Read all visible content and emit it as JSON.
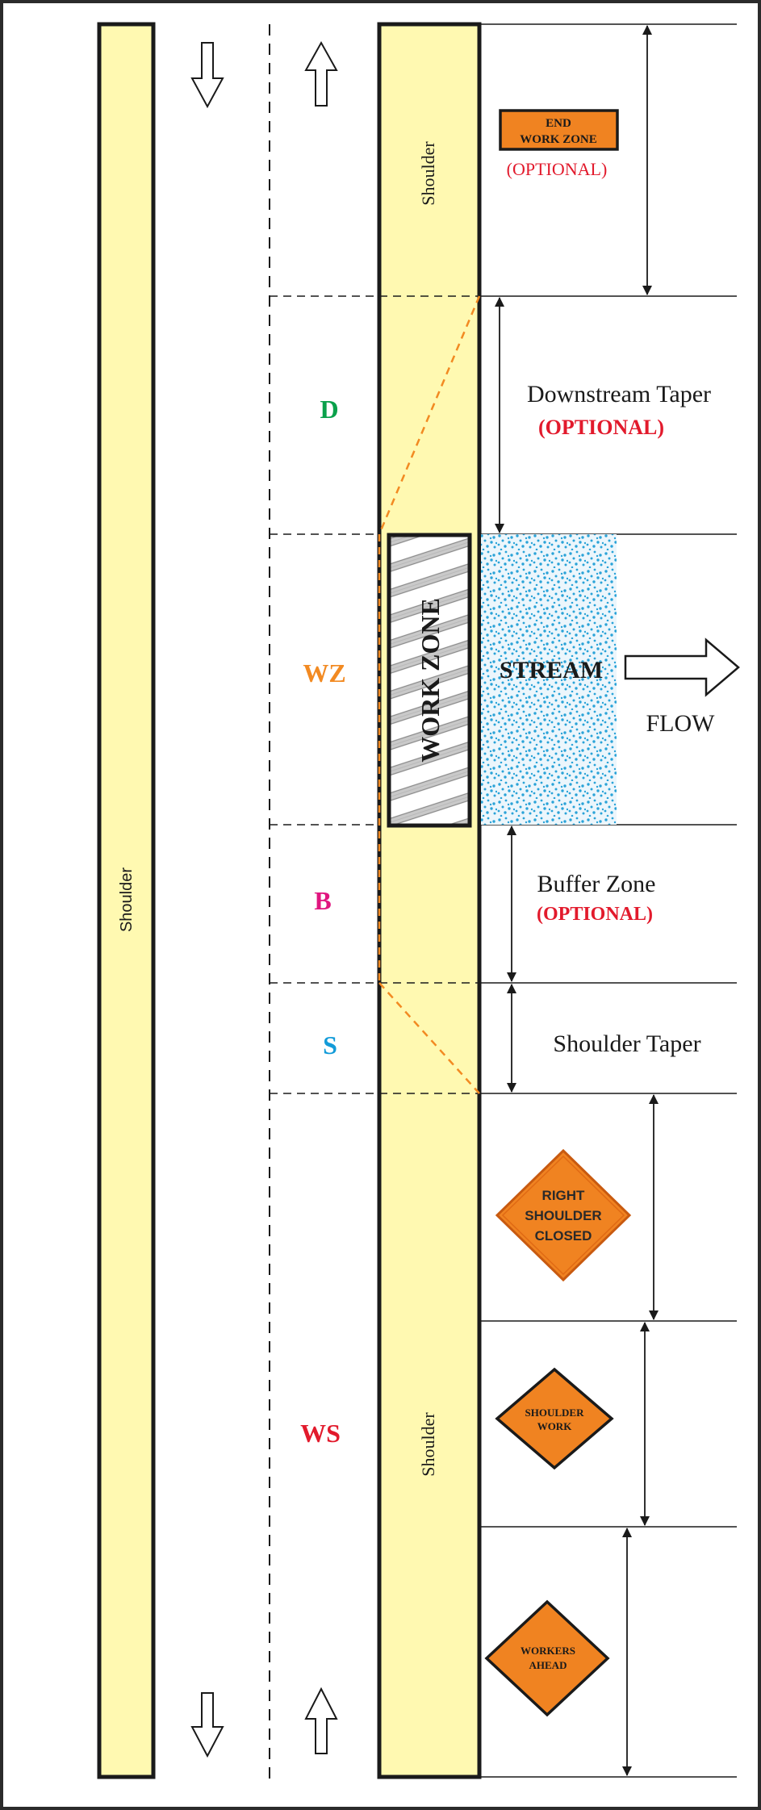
{
  "colors": {
    "shoulder_fill": "#fff9b1",
    "sign_orange": "#f08321",
    "optional_red": "#e21a2c",
    "zone_d": "#0aa14b",
    "zone_wz": "#f28a22",
    "zone_b": "#e0167f",
    "zone_s": "#129bd9",
    "zone_ws": "#e21a2c",
    "stream_dots": "#2aa3d8",
    "taper_line": "#f28a22"
  },
  "labels": {
    "shoulder_left": "Shoulder",
    "shoulder_right_top": "Shoulder",
    "shoulder_right_bottom": "Shoulder",
    "work_zone": "WORK ZONE",
    "stream": "STREAM",
    "flow": "FLOW"
  },
  "zones": {
    "d": "D",
    "wz": "WZ",
    "b": "B",
    "s": "S",
    "ws": "WS"
  },
  "annotations": {
    "downstream_taper": "Downstream Taper",
    "downstream_optional": "(OPTIONAL)",
    "buffer_zone": "Buffer Zone",
    "buffer_optional": "(OPTIONAL)",
    "shoulder_taper": "Shoulder Taper"
  },
  "signs": {
    "end_work_zone": {
      "line1": "END",
      "line2": "WORK ZONE",
      "note": "(OPTIONAL)"
    },
    "right_shoulder_closed": {
      "line1": "RIGHT",
      "line2": "SHOULDER",
      "line3": "CLOSED"
    },
    "shoulder_work": {
      "line1": "SHOULDER",
      "line2": "WORK"
    },
    "workers_ahead": {
      "line1": "WORKERS",
      "line2": "AHEAD"
    }
  },
  "icons": {
    "traffic_down": "arrow-down-icon",
    "traffic_up": "arrow-up-icon",
    "flow": "arrow-right-icon",
    "dimension": "double-arrow-icon"
  }
}
